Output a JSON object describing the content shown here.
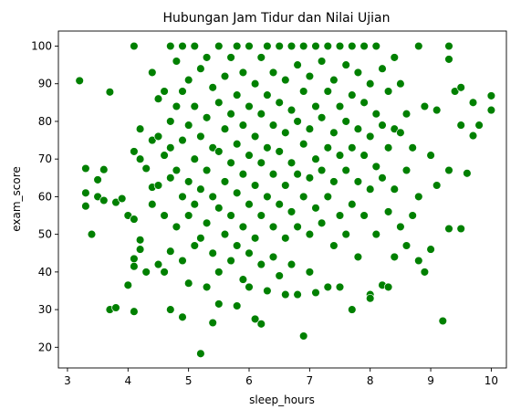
{
  "chart_data": {
    "type": "scatter",
    "title": "Hubungan Jam Tidur dan Nilai Ujian",
    "xlabel": "sleep_hours",
    "ylabel": "exam_score",
    "xlim": [
      2.85,
      10.25
    ],
    "ylim": [
      14.5,
      104
    ],
    "xticks": [
      3,
      4,
      5,
      6,
      7,
      8,
      9,
      10
    ],
    "yticks": [
      20,
      30,
      40,
      50,
      60,
      70,
      80,
      90,
      100
    ],
    "grid": false,
    "legend": "none",
    "marker_color": "#008000",
    "marker_edge_color": "#ffffff",
    "points": [
      [
        3.2,
        90.8
      ],
      [
        3.3,
        67.5
      ],
      [
        3.3,
        61
      ],
      [
        3.3,
        57.5
      ],
      [
        3.4,
        50
      ],
      [
        3.5,
        64.5
      ],
      [
        3.5,
        60
      ],
      [
        3.6,
        67.2
      ],
      [
        3.6,
        59
      ],
      [
        3.7,
        87.8
      ],
      [
        3.7,
        30
      ],
      [
        3.8,
        30.5
      ],
      [
        3.8,
        58.5
      ],
      [
        3.9,
        59.5
      ],
      [
        4.0,
        55
      ],
      [
        4.0,
        36.5
      ],
      [
        4.1,
        100
      ],
      [
        4.1,
        72
      ],
      [
        4.1,
        54
      ],
      [
        4.1,
        43.5
      ],
      [
        4.1,
        41.5
      ],
      [
        4.1,
        29.5
      ],
      [
        4.2,
        78
      ],
      [
        4.2,
        70
      ],
      [
        4.2,
        48.5
      ],
      [
        4.2,
        46
      ],
      [
        4.3,
        67.5
      ],
      [
        4.3,
        40
      ],
      [
        4.4,
        93
      ],
      [
        4.4,
        75
      ],
      [
        4.4,
        62.5
      ],
      [
        4.4,
        58
      ],
      [
        4.5,
        86
      ],
      [
        4.5,
        76
      ],
      [
        4.5,
        63
      ],
      [
        4.5,
        42
      ],
      [
        4.6,
        88
      ],
      [
        4.6,
        71
      ],
      [
        4.6,
        55
      ],
      [
        4.6,
        40
      ],
      [
        4.7,
        100
      ],
      [
        4.7,
        80
      ],
      [
        4.7,
        73
      ],
      [
        4.7,
        65
      ],
      [
        4.7,
        45.5
      ],
      [
        4.7,
        30
      ],
      [
        4.8,
        96
      ],
      [
        4.8,
        84
      ],
      [
        4.8,
        67
      ],
      [
        4.8,
        52
      ],
      [
        4.9,
        100
      ],
      [
        4.9,
        88
      ],
      [
        4.9,
        75
      ],
      [
        4.9,
        60
      ],
      [
        4.9,
        43
      ],
      [
        4.9,
        28
      ],
      [
        5.0,
        91
      ],
      [
        5.0,
        79
      ],
      [
        5.0,
        64
      ],
      [
        5.0,
        55
      ],
      [
        5.0,
        37
      ],
      [
        5.1,
        100
      ],
      [
        5.1,
        84
      ],
      [
        5.1,
        70
      ],
      [
        5.1,
        58
      ],
      [
        5.1,
        47
      ],
      [
        5.2,
        94
      ],
      [
        5.2,
        76
      ],
      [
        5.2,
        62
      ],
      [
        5.2,
        49
      ],
      [
        5.2,
        18.3
      ],
      [
        5.3,
        97
      ],
      [
        5.3,
        81
      ],
      [
        5.3,
        67
      ],
      [
        5.3,
        53
      ],
      [
        5.3,
        36
      ],
      [
        5.4,
        89
      ],
      [
        5.4,
        73
      ],
      [
        5.4,
        60
      ],
      [
        5.4,
        45
      ],
      [
        5.4,
        26.5
      ],
      [
        5.5,
        100
      ],
      [
        5.5,
        85
      ],
      [
        5.5,
        72
      ],
      [
        5.5,
        57
      ],
      [
        5.5,
        40
      ],
      [
        5.5,
        31.5
      ],
      [
        5.6,
        92
      ],
      [
        5.6,
        78
      ],
      [
        5.6,
        64
      ],
      [
        5.6,
        50
      ],
      [
        5.7,
        97
      ],
      [
        5.7,
        82
      ],
      [
        5.7,
        69
      ],
      [
        5.7,
        55
      ],
      [
        5.7,
        43
      ],
      [
        5.8,
        100
      ],
      [
        5.8,
        87
      ],
      [
        5.8,
        74
      ],
      [
        5.8,
        61
      ],
      [
        5.8,
        47
      ],
      [
        5.8,
        31
      ],
      [
        5.9,
        93
      ],
      [
        5.9,
        79
      ],
      [
        5.9,
        66
      ],
      [
        5.9,
        52
      ],
      [
        5.9,
        38
      ],
      [
        6.0,
        100
      ],
      [
        6.0,
        84
      ],
      [
        6.0,
        71
      ],
      [
        6.0,
        58
      ],
      [
        6.0,
        45
      ],
      [
        6.0,
        36
      ],
      [
        6.1,
        90
      ],
      [
        6.1,
        76
      ],
      [
        6.1,
        63
      ],
      [
        6.1,
        49
      ],
      [
        6.1,
        27.5
      ],
      [
        6.2,
        97
      ],
      [
        6.2,
        82
      ],
      [
        6.2,
        69
      ],
      [
        6.2,
        55
      ],
      [
        6.2,
        42
      ],
      [
        6.2,
        26.2
      ],
      [
        6.3,
        100
      ],
      [
        6.3,
        87
      ],
      [
        6.3,
        73
      ],
      [
        6.3,
        60
      ],
      [
        6.3,
        35
      ],
      [
        6.4,
        93
      ],
      [
        6.4,
        79
      ],
      [
        6.4,
        66
      ],
      [
        6.4,
        52
      ],
      [
        6.4,
        44
      ],
      [
        6.5,
        100
      ],
      [
        6.5,
        85
      ],
      [
        6.5,
        72
      ],
      [
        6.5,
        58
      ],
      [
        6.5,
        39
      ],
      [
        6.6,
        91
      ],
      [
        6.6,
        77
      ],
      [
        6.6,
        63
      ],
      [
        6.6,
        49
      ],
      [
        6.6,
        34
      ],
      [
        6.7,
        100
      ],
      [
        6.7,
        83
      ],
      [
        6.7,
        69
      ],
      [
        6.7,
        56
      ],
      [
        6.7,
        42
      ],
      [
        6.8,
        95
      ],
      [
        6.8,
        80
      ],
      [
        6.8,
        66
      ],
      [
        6.8,
        52
      ],
      [
        6.8,
        34
      ],
      [
        6.9,
        100
      ],
      [
        6.9,
        88
      ],
      [
        6.9,
        74
      ],
      [
        6.9,
        60
      ],
      [
        6.9,
        23
      ],
      [
        7.0,
        92
      ],
      [
        7.0,
        78
      ],
      [
        7.0,
        65
      ],
      [
        7.0,
        50
      ],
      [
        7.0,
        40
      ],
      [
        7.1,
        100
      ],
      [
        7.1,
        84
      ],
      [
        7.1,
        70
      ],
      [
        7.1,
        57
      ],
      [
        7.1,
        34.5
      ],
      [
        7.2,
        96
      ],
      [
        7.2,
        81
      ],
      [
        7.2,
        67
      ],
      [
        7.2,
        53
      ],
      [
        7.3,
        100
      ],
      [
        7.3,
        88
      ],
      [
        7.3,
        73
      ],
      [
        7.3,
        60
      ],
      [
        7.3,
        36
      ],
      [
        7.4,
        91
      ],
      [
        7.4,
        77
      ],
      [
        7.4,
        64
      ],
      [
        7.4,
        47
      ],
      [
        7.5,
        100
      ],
      [
        7.5,
        84
      ],
      [
        7.5,
        71
      ],
      [
        7.5,
        55
      ],
      [
        7.5,
        36
      ],
      [
        7.6,
        95
      ],
      [
        7.6,
        80
      ],
      [
        7.6,
        67
      ],
      [
        7.6,
        50
      ],
      [
        7.7,
        100
      ],
      [
        7.7,
        87
      ],
      [
        7.7,
        73
      ],
      [
        7.7,
        58
      ],
      [
        7.7,
        30
      ],
      [
        7.8,
        93
      ],
      [
        7.8,
        78
      ],
      [
        7.8,
        64
      ],
      [
        7.8,
        44
      ],
      [
        7.9,
        100
      ],
      [
        7.9,
        85
      ],
      [
        7.9,
        71
      ],
      [
        7.9,
        55
      ],
      [
        8.0,
        90
      ],
      [
        8.0,
        76
      ],
      [
        8.0,
        62
      ],
      [
        8.0,
        34
      ],
      [
        8.0,
        33
      ],
      [
        8.1,
        100
      ],
      [
        8.1,
        82
      ],
      [
        8.1,
        68
      ],
      [
        8.1,
        50
      ],
      [
        8.2,
        94
      ],
      [
        8.2,
        79
      ],
      [
        8.2,
        65
      ],
      [
        8.2,
        36.5
      ],
      [
        8.3,
        88
      ],
      [
        8.3,
        73
      ],
      [
        8.3,
        56
      ],
      [
        8.3,
        36
      ],
      [
        8.4,
        97
      ],
      [
        8.4,
        78
      ],
      [
        8.4,
        62
      ],
      [
        8.4,
        44
      ],
      [
        8.5,
        90
      ],
      [
        8.5,
        77
      ],
      [
        8.5,
        52
      ],
      [
        8.6,
        82
      ],
      [
        8.6,
        67
      ],
      [
        8.6,
        47
      ],
      [
        8.7,
        73
      ],
      [
        8.7,
        55
      ],
      [
        8.8,
        100
      ],
      [
        8.8,
        60
      ],
      [
        8.8,
        43
      ],
      [
        8.9,
        84
      ],
      [
        8.9,
        40
      ],
      [
        9.0,
        71
      ],
      [
        9.0,
        46
      ],
      [
        9.1,
        83
      ],
      [
        9.1,
        63
      ],
      [
        9.2,
        27
      ],
      [
        9.3,
        100
      ],
      [
        9.3,
        96.5
      ],
      [
        9.3,
        67
      ],
      [
        9.3,
        51.5
      ],
      [
        9.4,
        88
      ],
      [
        9.5,
        89
      ],
      [
        9.5,
        79
      ],
      [
        9.5,
        51.5
      ],
      [
        9.6,
        66.2
      ],
      [
        9.7,
        85
      ],
      [
        9.7,
        76.2
      ],
      [
        9.8,
        79
      ],
      [
        10.0,
        86.8
      ],
      [
        10.0,
        83
      ]
    ]
  }
}
